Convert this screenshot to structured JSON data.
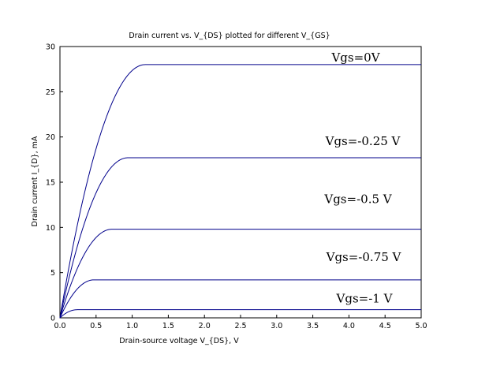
{
  "chart_data": {
    "type": "line",
    "title": "Drain current vs. V_{DS} plotted for different V_{GS}",
    "xlabel": "Drain-source voltage V_{DS}, V",
    "ylabel": "Drain current I_{D}, mA",
    "xlim": [
      0,
      5
    ],
    "ylim": [
      0,
      30
    ],
    "xticks": [
      "0.0",
      "0.5",
      "1.0",
      "1.5",
      "2.0",
      "2.5",
      "3.0",
      "3.5",
      "4.0",
      "4.5",
      "5.0"
    ],
    "yticks": [
      "0",
      "5",
      "10",
      "15",
      "20",
      "25",
      "30"
    ],
    "grid": false,
    "line_color": "#00008b",
    "series": [
      {
        "label": "Vgs=0V",
        "vp": 1.18,
        "idss": 28.0
      },
      {
        "label": "Vgs=-0.25 V",
        "vp": 0.94,
        "idss": 17.7
      },
      {
        "label": "Vgs=-0.5 V",
        "vp": 0.72,
        "idss": 9.8
      },
      {
        "label": "Vgs=-0.75 V",
        "vp": 0.47,
        "idss": 4.2
      },
      {
        "label": "Vgs=-1 V",
        "vp": 0.24,
        "idss": 0.9
      }
    ]
  }
}
